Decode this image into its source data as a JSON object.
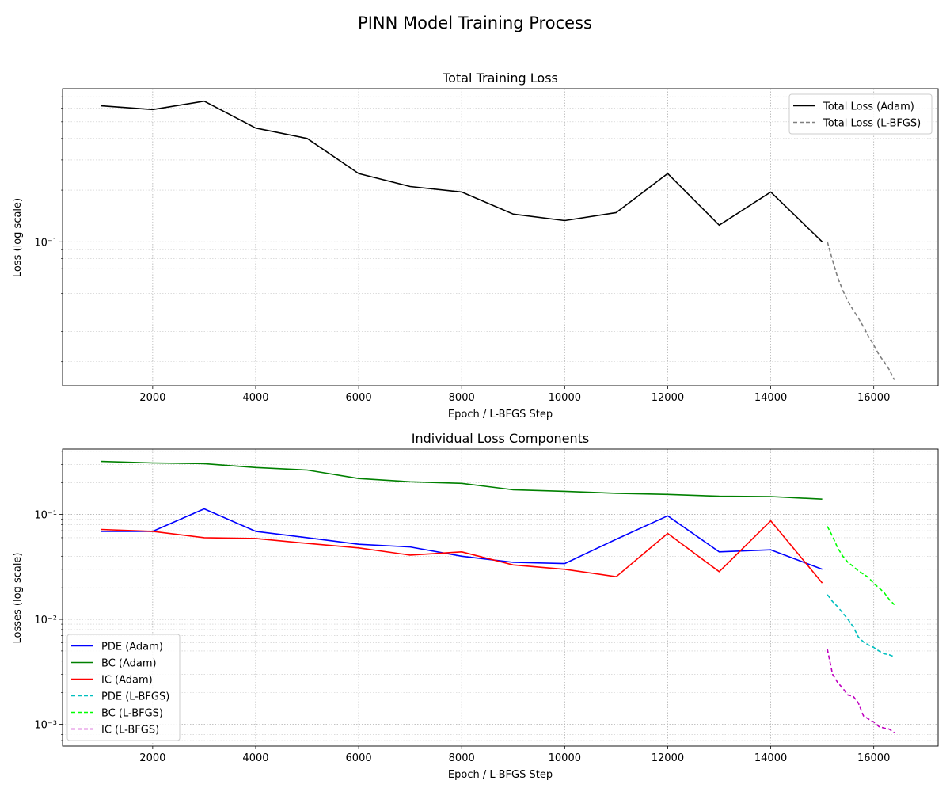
{
  "figure": {
    "suptitle": "PINN Model Training Process"
  },
  "chart_data": [
    {
      "type": "line",
      "title": "Total Training Loss",
      "xlabel": "Epoch / L-BFGS Step",
      "ylabel": "Loss (log scale)",
      "yscale": "log",
      "xlim": [
        250,
        17250
      ],
      "ylim": [
        0.0145,
        0.78
      ],
      "xticks": [
        2000,
        4000,
        6000,
        8000,
        10000,
        12000,
        14000,
        16000
      ],
      "yticks": [
        {
          "value": 0.1,
          "label": "10⁻¹"
        }
      ],
      "grid": true,
      "legend": "top-right",
      "series": [
        {
          "name": "Total Loss (Adam)",
          "color": "#000000",
          "dash": "solid",
          "x": [
            1000,
            2000,
            3000,
            4000,
            5000,
            6000,
            7000,
            8000,
            9000,
            10000,
            11000,
            12000,
            13000,
            14000,
            15000
          ],
          "y": [
            0.62,
            0.59,
            0.66,
            0.46,
            0.4,
            0.25,
            0.21,
            0.195,
            0.145,
            0.133,
            0.148,
            0.25,
            0.125,
            0.195,
            0.1
          ]
        },
        {
          "name": "Total Loss (L-BFGS)",
          "color": "#808080",
          "dash": "dashed",
          "x": [
            15100,
            15200,
            15300,
            15400,
            15500,
            15600,
            15700,
            15800,
            15900,
            16000,
            16100,
            16200,
            16300,
            16400
          ],
          "y": [
            0.1,
            0.078,
            0.062,
            0.052,
            0.045,
            0.04,
            0.036,
            0.032,
            0.028,
            0.025,
            0.022,
            0.02,
            0.018,
            0.0157
          ]
        }
      ]
    },
    {
      "type": "line",
      "title": "Individual Loss Components",
      "xlabel": "Epoch / L-BFGS Step",
      "ylabel": "Losses (log scale)",
      "yscale": "log",
      "xlim": [
        250,
        17250
      ],
      "ylim": [
        0.00062,
        0.42
      ],
      "xticks": [
        2000,
        4000,
        6000,
        8000,
        10000,
        12000,
        14000,
        16000
      ],
      "yticks": [
        {
          "value": 0.001,
          "label": "10⁻³"
        },
        {
          "value": 0.01,
          "label": "10⁻²"
        },
        {
          "value": 0.1,
          "label": "10⁻¹"
        }
      ],
      "grid": true,
      "legend": "bottom-left",
      "series": [
        {
          "name": "PDE (Adam)",
          "color": "#0000ff",
          "dash": "solid",
          "x": [
            1000,
            2000,
            3000,
            4000,
            5000,
            6000,
            7000,
            8000,
            9000,
            10000,
            11000,
            12000,
            13000,
            14000,
            15000
          ],
          "y": [
            0.069,
            0.069,
            0.113,
            0.069,
            0.06,
            0.052,
            0.049,
            0.04,
            0.035,
            0.034,
            0.058,
            0.097,
            0.044,
            0.046,
            0.03
          ]
        },
        {
          "name": "BC (Adam)",
          "color": "#008000",
          "dash": "solid",
          "x": [
            1000,
            2000,
            3000,
            4000,
            5000,
            6000,
            7000,
            8000,
            9000,
            10000,
            11000,
            12000,
            13000,
            14000,
            15000
          ],
          "y": [
            0.32,
            0.31,
            0.305,
            0.28,
            0.265,
            0.22,
            0.205,
            0.198,
            0.172,
            0.166,
            0.159,
            0.155,
            0.149,
            0.148,
            0.14
          ]
        },
        {
          "name": "IC (Adam)",
          "color": "#ff0000",
          "dash": "solid",
          "x": [
            1000,
            2000,
            3000,
            4000,
            5000,
            6000,
            7000,
            8000,
            9000,
            10000,
            11000,
            12000,
            13000,
            14000,
            15000
          ],
          "y": [
            0.072,
            0.069,
            0.06,
            0.059,
            0.053,
            0.048,
            0.041,
            0.044,
            0.033,
            0.03,
            0.0255,
            0.066,
            0.0285,
            0.087,
            0.0222
          ]
        },
        {
          "name": "PDE (L-BFGS)",
          "color": "#00bfbf",
          "dash": "dashed",
          "x": [
            15100,
            15200,
            15300,
            15400,
            15500,
            15600,
            15700,
            15800,
            15900,
            16000,
            16100,
            16200,
            16300,
            16400
          ],
          "y": [
            0.0172,
            0.0148,
            0.0132,
            0.0115,
            0.01,
            0.0085,
            0.0068,
            0.0061,
            0.0057,
            0.0054,
            0.005,
            0.0047,
            0.0046,
            0.0044
          ]
        },
        {
          "name": "BC (L-BFGS)",
          "color": "#00ff00",
          "dash": "dashed",
          "x": [
            15100,
            15200,
            15300,
            15400,
            15500,
            15600,
            15700,
            15800,
            15900,
            16000,
            16100,
            16200,
            16300,
            16400
          ],
          "y": [
            0.077,
            0.062,
            0.048,
            0.04,
            0.035,
            0.032,
            0.029,
            0.027,
            0.025,
            0.022,
            0.02,
            0.018,
            0.0155,
            0.0138
          ]
        },
        {
          "name": "IC (L-BFGS)",
          "color": "#bf00bf",
          "dash": "dashed",
          "x": [
            15100,
            15200,
            15300,
            15400,
            15500,
            15600,
            15700,
            15800,
            15900,
            16000,
            16100,
            16200,
            16300,
            16400
          ],
          "y": [
            0.0052,
            0.003,
            0.0025,
            0.0022,
            0.0019,
            0.00185,
            0.0016,
            0.0012,
            0.00112,
            0.00105,
            0.00095,
            0.00092,
            0.0009,
            0.00083
          ]
        }
      ]
    }
  ]
}
